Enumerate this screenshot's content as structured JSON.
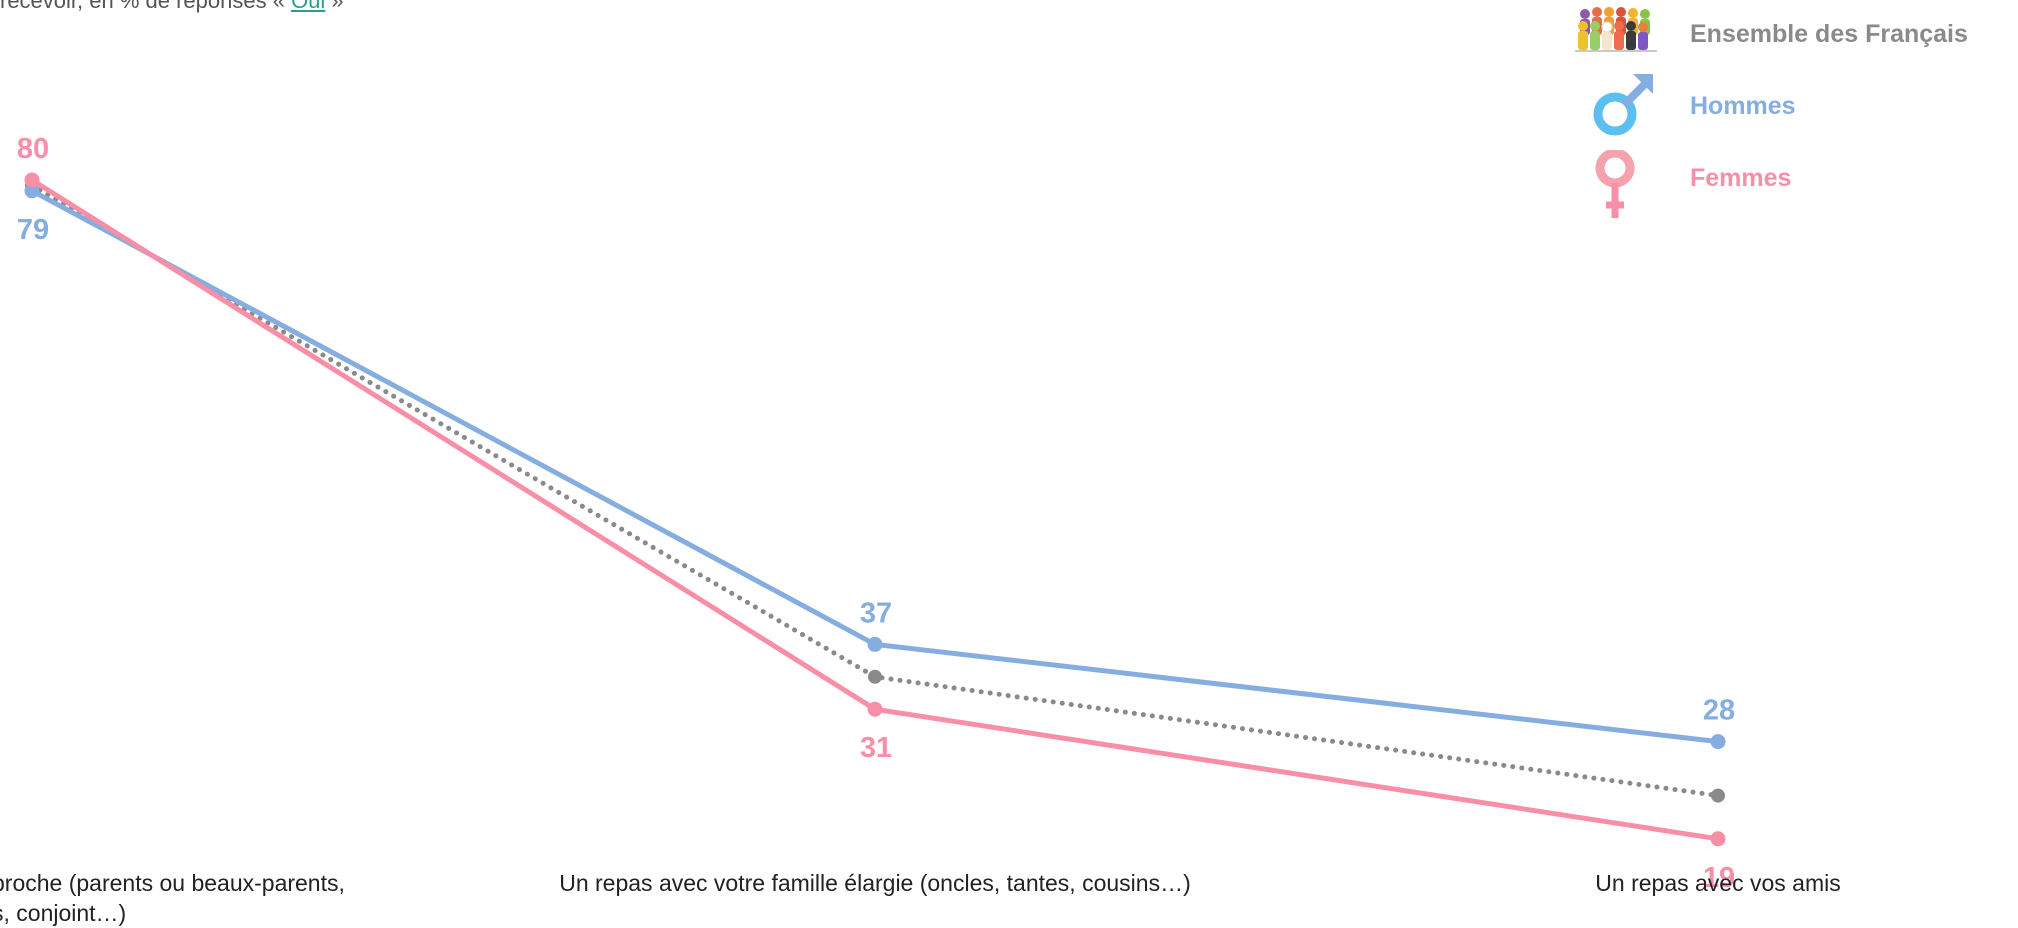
{
  "subtitle": {
    "text": "recevoir, en % de réponses « ",
    "answer": "Oui",
    "suffix": " »"
  },
  "legend": [
    {
      "key": "ensemble",
      "label": "Ensemble des Français",
      "color": "#8a8a8a",
      "icon": "crowd-icon"
    },
    {
      "key": "hommes",
      "label": "Hommes",
      "color": "#85ade0",
      "icon": "male-symbol-icon"
    },
    {
      "key": "femmes",
      "label": "Femmes",
      "color": "#f98ea7",
      "icon": "female-symbol-icon"
    }
  ],
  "chart_data": {
    "type": "line",
    "title": "",
    "xlabel": "",
    "ylabel": "",
    "ylim": [
      0,
      100
    ],
    "grid": false,
    "legend_position": "top-right",
    "categories": [
      [
        "proche (parents ou beaux-parents,",
        "s, conjoint…)"
      ],
      [
        "Un repas avec votre famille élargie (oncles, tantes, cousins…)"
      ],
      [
        "Un repas avec vos amis"
      ]
    ],
    "series": [
      {
        "name": "Ensemble des Français",
        "values": [
          79.5,
          34,
          23
        ],
        "color": "#8a8a8a",
        "style": "dotted",
        "labels": [
          null,
          null,
          null
        ]
      },
      {
        "name": "Hommes",
        "values": [
          79,
          37,
          28
        ],
        "color": "#85ade0",
        "style": "solid",
        "labels": [
          "79",
          "37",
          "28"
        ]
      },
      {
        "name": "Femmes",
        "values": [
          80,
          31,
          19
        ],
        "color": "#f98ea7",
        "style": "solid",
        "labels": [
          "80",
          "31",
          "19"
        ]
      }
    ]
  }
}
